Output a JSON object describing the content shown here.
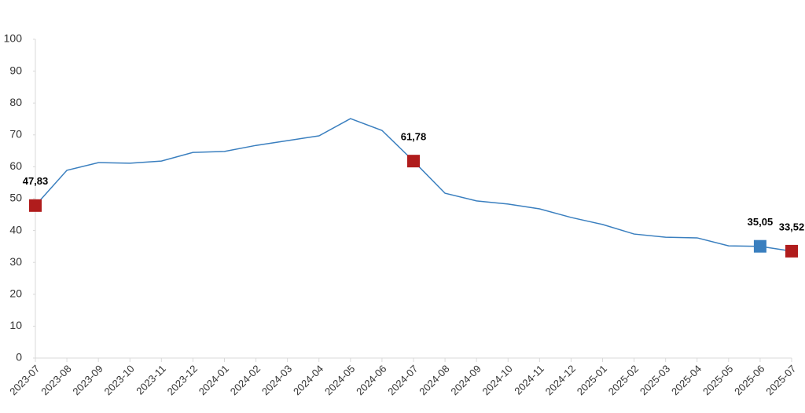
{
  "chart_data": {
    "type": "line",
    "categories": [
      "2023-07",
      "2023-08",
      "2023-09",
      "2023-10",
      "2023-11",
      "2023-12",
      "2024-01",
      "2024-02",
      "2024-03",
      "2024-04",
      "2024-05",
      "2024-06",
      "2024-07",
      "2024-08",
      "2024-09",
      "2024-10",
      "2024-11",
      "2024-12",
      "2025-01",
      "2025-02",
      "2025-03",
      "2025-04",
      "2025-05",
      "2025-06",
      "2025-07"
    ],
    "series": [
      {
        "color": "#3a7fbf",
        "values": [
          47.83,
          58.9,
          61.3,
          61.1,
          61.8,
          64.5,
          64.8,
          66.7,
          68.2,
          69.7,
          75.1,
          71.4,
          61.78,
          51.7,
          49.3,
          48.3,
          46.8,
          44.1,
          41.9,
          38.9,
          37.9,
          37.7,
          35.2,
          35.05,
          33.52
        ],
        "value_labels": [
          "47,83",
          null,
          null,
          null,
          null,
          null,
          null,
          null,
          null,
          null,
          null,
          null,
          "61,78",
          null,
          null,
          null,
          null,
          null,
          null,
          null,
          null,
          null,
          null,
          "35,05",
          "33,52"
        ],
        "marker_colors": [
          "#b01c1c",
          null,
          null,
          null,
          null,
          null,
          null,
          null,
          null,
          null,
          null,
          null,
          "#b01c1c",
          null,
          null,
          null,
          null,
          null,
          null,
          null,
          null,
          null,
          null,
          "#3a7fbf",
          "#b01c1c"
        ]
      }
    ],
    "ylim": [
      0,
      100
    ],
    "yticks": [
      0,
      10,
      20,
      30,
      40,
      50,
      60,
      70,
      80,
      90,
      100
    ],
    "grid": false
  }
}
